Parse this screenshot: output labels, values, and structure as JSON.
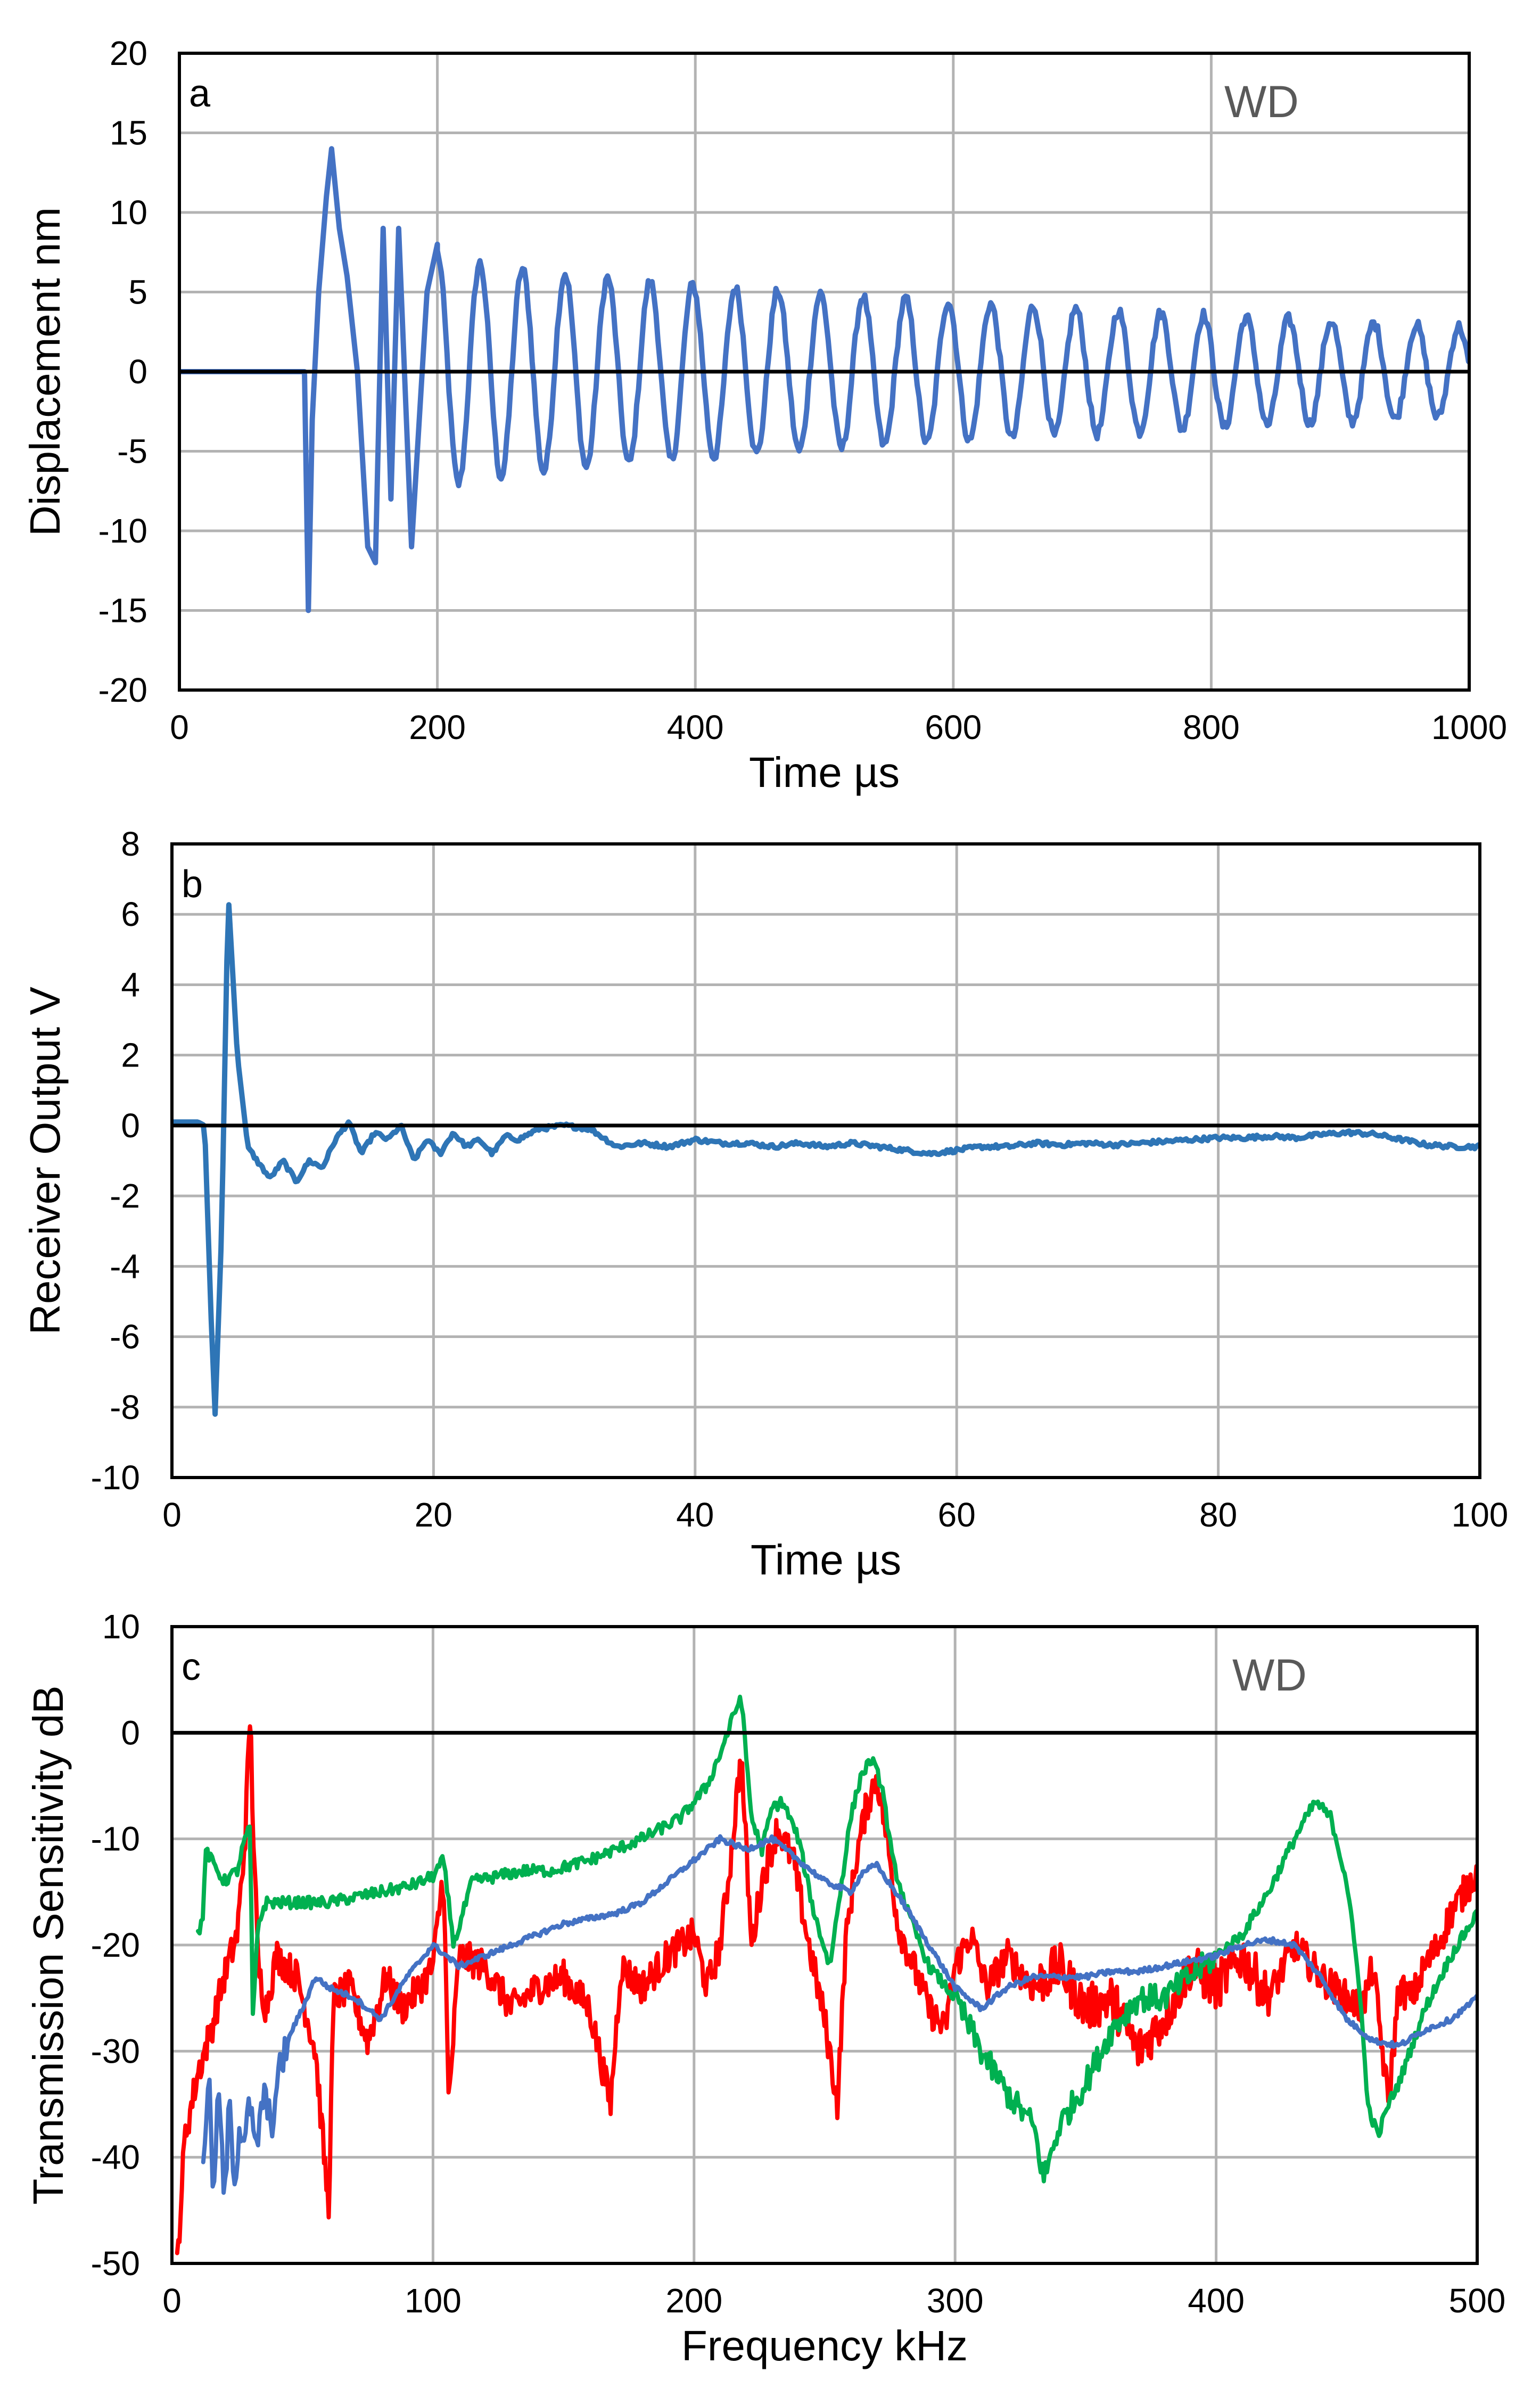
{
  "chart_data": [
    {
      "type": "line",
      "panel": "a",
      "annotation": "WD",
      "xlabel": "Time  µs",
      "ylabel": "Displacement  nm",
      "xlim": [
        0,
        1000
      ],
      "ylim": [
        -20,
        20
      ],
      "xticks": [
        0,
        200,
        400,
        600,
        800,
        1000
      ],
      "yticks": [
        -20,
        -15,
        -10,
        -5,
        0,
        5,
        10,
        15,
        20
      ],
      "grid": true,
      "color": "#4472c4",
      "series": [
        {
          "name": "displacement",
          "onset": 97,
          "x": [
            0,
            97,
            100,
            103,
            108,
            114,
            118,
            124,
            130,
            138,
            146,
            152,
            158,
            164,
            170,
            180,
            192,
            200
          ],
          "y": [
            0,
            0,
            -15,
            -3,
            5,
            11,
            14,
            9,
            6,
            0,
            -11,
            -12,
            9,
            -8,
            9,
            -11,
            5,
            8
          ],
          "decay_tail": {
            "x_start": 200,
            "x_end": 1000,
            "period_us": 33,
            "amplitude_start": 7.5,
            "amplitude_end": 2.8
          }
        }
      ]
    },
    {
      "type": "line",
      "panel": "b",
      "xlabel": "Time  µs",
      "ylabel": "Receiver Output  V",
      "xlim": [
        0,
        100
      ],
      "ylim": [
        -10,
        8
      ],
      "xticks": [
        0,
        20,
        40,
        60,
        80,
        100
      ],
      "yticks": [
        -10,
        -8,
        -6,
        -4,
        -2,
        0,
        2,
        4,
        6,
        8
      ],
      "grid": true,
      "color": "#2e75b6",
      "series": [
        {
          "name": "receiver output",
          "x": [
            0,
            2,
            2.5,
            3,
            3.3,
            3.8,
            4.3,
            5,
            5.8,
            6.5,
            7.5,
            8.5,
            9.5,
            10.5,
            11.5,
            12.5,
            13.5,
            14.5,
            15.5,
            16.5,
            17.5,
            18.5,
            19.5,
            20.5,
            21.5,
            22.5,
            23.5,
            24.5,
            25.5,
            26.5,
            28,
            30,
            32,
            34,
            36,
            38,
            40,
            42,
            44,
            46,
            48,
            50,
            52,
            54,
            56,
            58,
            60,
            62,
            64,
            66,
            68,
            70,
            72,
            74,
            76,
            78,
            80,
            82,
            84,
            86,
            88,
            90,
            92,
            94,
            96,
            98,
            100
          ],
          "y": [
            0.1,
            0.1,
            0,
            -5.5,
            -8.2,
            -3,
            6.6,
            2,
            -0.6,
            -1,
            -1.5,
            -1,
            -1.6,
            -1,
            -1.2,
            -0.4,
            0.1,
            -0.8,
            -0.2,
            -0.4,
            0,
            -1,
            -0.4,
            -0.8,
            -0.2,
            -0.6,
            -0.4,
            -0.8,
            -0.3,
            -0.4,
            -0.1,
            0,
            -0.1,
            -0.6,
            -0.5,
            -0.6,
            -0.4,
            -0.5,
            -0.5,
            -0.6,
            -0.5,
            -0.6,
            -0.5,
            -0.6,
            -0.7,
            -0.8,
            -0.7,
            -0.6,
            -0.6,
            -0.5,
            -0.55,
            -0.5,
            -0.55,
            -0.5,
            -0.45,
            -0.4,
            -0.35,
            -0.35,
            -0.3,
            -0.35,
            -0.25,
            -0.2,
            -0.25,
            -0.4,
            -0.55,
            -0.6,
            -0.6
          ]
        }
      ]
    },
    {
      "type": "line",
      "panel": "c",
      "annotation": "WD",
      "xlabel": "Frequency  kHz",
      "ylabel": "Transmission Sensitivity  dB",
      "xlim": [
        0,
        500
      ],
      "ylim": [
        -50,
        10
      ],
      "xticks": [
        0,
        100,
        200,
        300,
        400,
        500
      ],
      "yticks": [
        -50,
        -40,
        -30,
        -20,
        -10,
        0,
        10
      ],
      "grid": true,
      "series": [
        {
          "name": "red",
          "color": "#ff0000",
          "x": [
            2,
            5,
            10,
            15,
            20,
            25,
            28,
            30,
            31,
            33,
            36,
            40,
            48,
            55,
            60,
            62,
            68,
            75,
            82,
            88,
            95,
            100,
            104,
            106,
            110,
            120,
            130,
            140,
            150,
            160,
            168,
            172,
            180,
            190,
            200,
            205,
            210,
            214,
            218,
            222,
            226,
            232,
            238,
            244,
            250,
            255,
            258,
            262,
            266,
            270,
            274,
            278,
            284,
            290,
            296,
            300,
            306,
            312,
            320,
            330,
            340,
            350,
            360,
            370,
            380,
            390,
            400,
            410,
            420,
            430,
            440,
            450,
            456,
            460,
            466,
            470,
            475,
            480,
            485,
            490,
            495,
            500
          ],
          "y": [
            -50,
            -38,
            -32,
            -28,
            -23,
            -19,
            -10,
            2,
            -8,
            -22,
            -26,
            -21,
            -23,
            -30,
            -45,
            -25,
            -24,
            -29,
            -23,
            -26,
            -24,
            -22,
            -13,
            -35,
            -21,
            -22,
            -26,
            -24,
            -23,
            -26,
            -35,
            -22,
            -24,
            -21,
            -19,
            -24,
            -20,
            -12,
            -2,
            -20,
            -14,
            -9,
            -12,
            -20,
            -27,
            -35,
            -20,
            -12,
            -7,
            -4,
            -10,
            -18,
            -22,
            -26,
            -28,
            -22,
            -19,
            -24,
            -21,
            -24,
            -22,
            -26,
            -25,
            -30,
            -27,
            -22,
            -24,
            -21,
            -25,
            -20,
            -23,
            -25,
            -26,
            -22,
            -35,
            -24,
            -25,
            -22,
            -20,
            -17,
            -15,
            -13
          ]
        },
        {
          "name": "green",
          "color": "#00b050",
          "x": [
            10,
            12,
            13,
            15,
            20,
            25,
            28,
            30,
            31,
            33,
            36,
            40,
            50,
            60,
            70,
            80,
            90,
            96,
            100,
            104,
            108,
            115,
            125,
            135,
            142,
            145,
            160,
            180,
            195,
            205,
            210,
            215,
            218,
            222,
            226,
            230,
            234,
            240,
            246,
            252,
            256,
            260,
            264,
            268,
            272,
            276,
            282,
            290,
            300,
            310,
            320,
            330,
            334,
            340,
            350,
            360,
            370,
            380,
            390,
            400,
            410,
            420,
            430,
            438,
            444,
            450,
            455,
            458,
            462,
            466,
            470,
            480,
            490,
            500
          ],
          "y": [
            -19,
            -17,
            -11,
            -12,
            -14,
            -13,
            -10,
            -9,
            -27,
            -18,
            -16,
            -16,
            -16,
            -16,
            -15.5,
            -15,
            -14.5,
            -14,
            -13.5,
            -12,
            -20,
            -14,
            -13.5,
            -13,
            -13,
            -13,
            -12,
            -10,
            -8,
            -5,
            -2,
            1.5,
            3.5,
            -8,
            -11,
            -7,
            -6.5,
            -10,
            -17,
            -22,
            -15,
            -8,
            -4,
            -2.5,
            -5,
            -12,
            -17,
            -22,
            -25,
            -30,
            -34,
            -37,
            -42,
            -37,
            -33,
            -28,
            -25,
            -25,
            -23,
            -21,
            -19,
            -15,
            -10,
            -6.5,
            -8,
            -14,
            -24,
            -35,
            -38,
            -35,
            -33,
            -26,
            -21,
            -17
          ]
        },
        {
          "name": "blue",
          "color": "#4472c4",
          "x": [
            12,
            14,
            16,
            18,
            20,
            22,
            24,
            26,
            28,
            30,
            32,
            35,
            38,
            42,
            46,
            50,
            55,
            60,
            70,
            80,
            90,
            100,
            110,
            120,
            130,
            140,
            150,
            160,
            170,
            180,
            190,
            200,
            210,
            220,
            230,
            240,
            250,
            260,
            265,
            270,
            280,
            290,
            300,
            310,
            320,
            330,
            340,
            350,
            360,
            370,
            380,
            390,
            400,
            410,
            420,
            430,
            440,
            450,
            460,
            470,
            480,
            490,
            500
          ],
          "y": [
            -40,
            -32,
            -44,
            -33,
            -45,
            -35,
            -42,
            -37,
            -38,
            -35,
            -40,
            -34,
            -37,
            -31,
            -28,
            -26,
            -23,
            -24,
            -25,
            -27,
            -23,
            -20,
            -22,
            -21,
            -20,
            -19,
            -18,
            -17.5,
            -17,
            -16,
            -14,
            -12,
            -10,
            -11,
            -10,
            -12,
            -14,
            -15,
            -13,
            -12.5,
            -16,
            -20,
            -24,
            -26,
            -24,
            -23,
            -23,
            -23,
            -22.5,
            -22.5,
            -22,
            -21.5,
            -21,
            -20,
            -19.5,
            -20,
            -23,
            -27,
            -29,
            -29.5,
            -28,
            -27,
            -25
          ]
        }
      ]
    }
  ]
}
